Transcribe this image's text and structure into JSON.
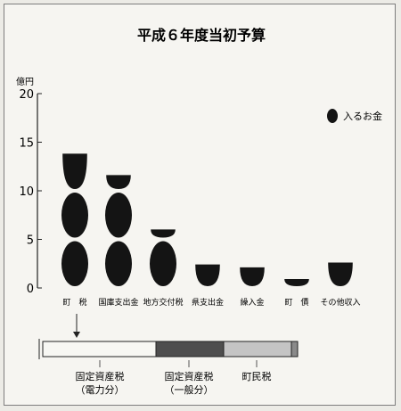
{
  "chart_data": {
    "type": "bar",
    "title": "平成６年度当初予算",
    "ylabel": "億円",
    "ylim": [
      0,
      20
    ],
    "yticks": [
      "0",
      "5",
      "10",
      "15",
      "20"
    ],
    "legend": {
      "label": "入るお金",
      "placement": "top-right"
    },
    "categories": [
      "町　税",
      "国庫支出金",
      "地方交付税",
      "県支出金",
      "繰入金",
      "町　債",
      "その他収入"
    ],
    "values": [
      14.0,
      11.8,
      6.2,
      2.6,
      2.3,
      1.1,
      2.8
    ],
    "breakdown": {
      "of_category": "町　税",
      "segments": [
        {
          "label": "固定資産税\n（電力分）",
          "fill": "plain"
        },
        {
          "label": "固定資産税\n（一般分）",
          "fill": "dark"
        },
        {
          "label": "町民税",
          "fill": "light"
        }
      ]
    }
  },
  "colors": {
    "bar": "#141414",
    "dark": "#4e4e4e",
    "light": "#c4c4c4",
    "plain": "#f7f7f3"
  }
}
